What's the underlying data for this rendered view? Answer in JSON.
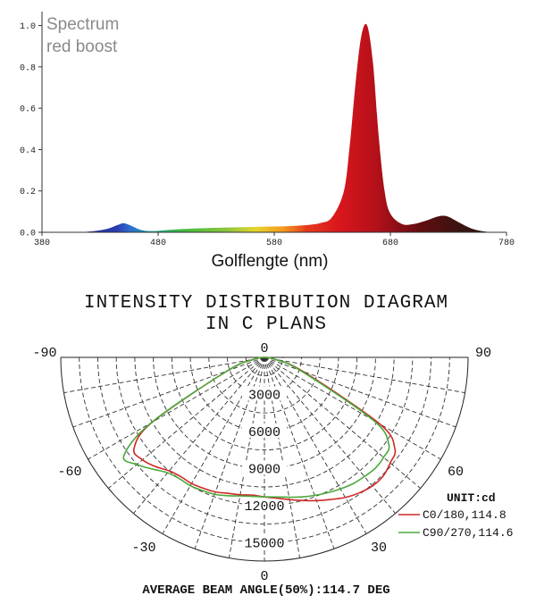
{
  "chart_data": [
    {
      "type": "area",
      "title": "Spectrum red boost",
      "title_lines": [
        "Spectrum",
        "red boost"
      ],
      "xlabel": "Golflengte (nm)",
      "ylabel": "",
      "xlim": [
        380,
        780
      ],
      "ylim": [
        0,
        1.05
      ],
      "x_ticks": [
        380,
        480,
        580,
        680,
        780
      ],
      "x_tick_labels": [
        "380",
        "480",
        "580",
        "680",
        "780"
      ],
      "y_ticks": [
        0.0,
        0.2,
        0.4,
        0.6,
        0.8,
        1.0
      ],
      "y_tick_labels": [
        "0.0",
        "0.2",
        "0.4",
        "0.6",
        "0.8",
        "1.0"
      ],
      "grid": false,
      "fill": "wavelength-color gradient",
      "x": [
        380,
        400,
        420,
        435,
        445,
        450,
        455,
        465,
        475,
        490,
        510,
        540,
        570,
        600,
        620,
        630,
        640,
        645,
        650,
        655,
        660,
        665,
        670,
        675,
        680,
        690,
        700,
        710,
        720,
        725,
        730,
        740,
        750,
        760,
        770,
        780
      ],
      "values": [
        0.0,
        0.0,
        0.003,
        0.015,
        0.035,
        0.044,
        0.036,
        0.012,
        0.006,
        0.012,
        0.018,
        0.023,
        0.027,
        0.032,
        0.045,
        0.075,
        0.2,
        0.42,
        0.72,
        0.95,
        1.0,
        0.82,
        0.46,
        0.2,
        0.09,
        0.04,
        0.04,
        0.055,
        0.075,
        0.08,
        0.075,
        0.045,
        0.018,
        0.005,
        0.0,
        0.0
      ]
    },
    {
      "type": "polar",
      "title": "INTENSITY DISTRIBUTION DIAGRAM",
      "title_lines": [
        "INTENSITY DISTRIBUTION DIAGRAM",
        "IN C PLANS"
      ],
      "angle_range": [
        -90,
        90
      ],
      "angle_ticks": [
        -90,
        -60,
        -30,
        0,
        30,
        60,
        90
      ],
      "angle_labels": {
        "-90": "-90",
        "-60": "-60",
        "-30": "-30",
        "0": "0",
        "30": "30",
        "60": "60",
        "90": "90"
      },
      "radial_max": 16500,
      "radial_ticks": [
        3000,
        6000,
        9000,
        12000,
        15000
      ],
      "radial_tick_labels": [
        "3000",
        "6000",
        "9000",
        "12000",
        "15000"
      ],
      "bottom_label": "0",
      "unit_label": "UNIT:cd",
      "footer": "AVERAGE BEAM ANGLE(50%):114.7 DEG",
      "series": [
        {
          "name": "C0/180,114.8",
          "color": "#d02828",
          "angles": [
            -90,
            -80,
            -70,
            -60,
            -55,
            -50,
            -45,
            -40,
            -35,
            -30,
            -25,
            -20,
            -15,
            -10,
            -5,
            0,
            5,
            10,
            15,
            20,
            25,
            30,
            35,
            40,
            45,
            50,
            55,
            60,
            70,
            80,
            90
          ],
          "values": [
            0,
            800,
            3200,
            10500,
            12900,
            12900,
            12500,
            12000,
            11800,
            11800,
            11700,
            11600,
            11400,
            11300,
            11200,
            11300,
            11450,
            11700,
            12000,
            12350,
            12700,
            13100,
            13400,
            13600,
            13600,
            13300,
            12900,
            10800,
            3300,
            800,
            0
          ]
        },
        {
          "name": "C90/270,114.6",
          "color": "#4aa83a",
          "angles": [
            -90,
            -80,
            -70,
            -60,
            -55,
            -50,
            -45,
            -40,
            -35,
            -30,
            -25,
            -20,
            -15,
            -10,
            -5,
            0,
            5,
            10,
            15,
            20,
            25,
            30,
            35,
            40,
            45,
            50,
            55,
            60,
            70,
            80,
            90
          ],
          "values": [
            0,
            800,
            3200,
            10600,
            13900,
            13500,
            12800,
            12200,
            12000,
            12000,
            11900,
            11800,
            11600,
            11400,
            11300,
            11300,
            11350,
            11500,
            11700,
            11900,
            12100,
            12300,
            12500,
            12600,
            12700,
            12600,
            12300,
            10200,
            3100,
            800,
            0
          ]
        }
      ]
    }
  ],
  "colors": {
    "title_gray": "#8a8a8a",
    "grid": "#2a2a2a",
    "axis": "#333333"
  }
}
